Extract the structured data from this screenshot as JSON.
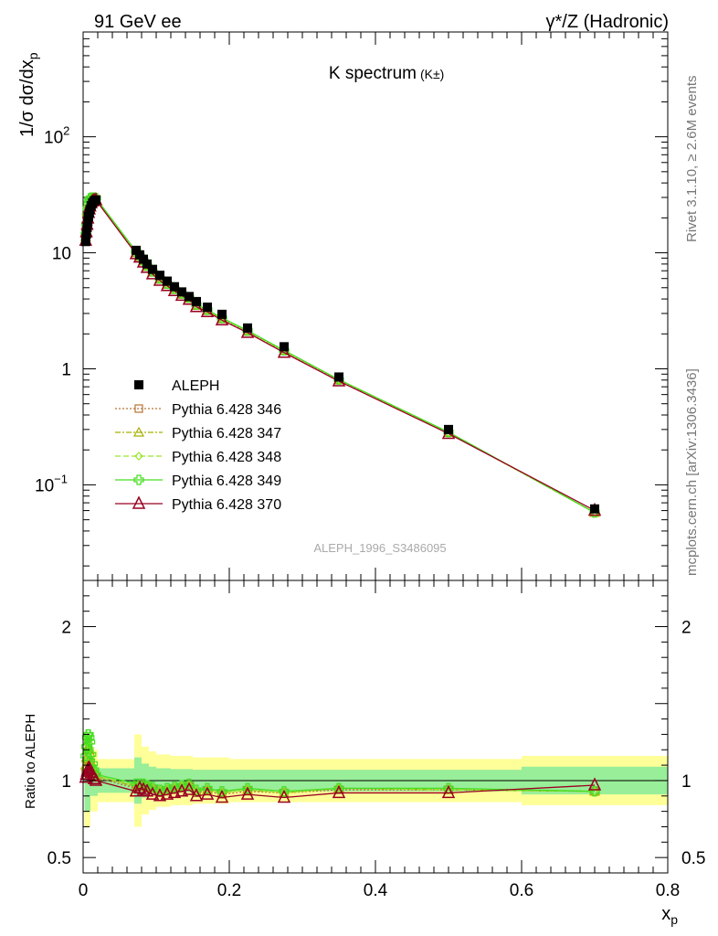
{
  "header": {
    "left": "91 GeV ee",
    "right": "γ*/Z (Hadronic)"
  },
  "side_labels": {
    "rivet": "Rivet 3.1.10, ≥ 2.6M events",
    "mcplots": "mcplots.cern.ch [arXiv:1306.3436]"
  },
  "chart_data": {
    "type": "line",
    "title": "K spectrum",
    "title_sub": "(K±)",
    "analysis_tag": "ALEPH_1996_S3486095",
    "xlabel": "x",
    "xlabel_sub": "p",
    "ylabel_main": "1/σ dσ/dx",
    "ylabel_main_sub": "p",
    "ylabel_ratio": "Ratio to ALEPH",
    "xlim": [
      0,
      0.8
    ],
    "ylim_main": [
      0.015,
      800
    ],
    "ylog_main": true,
    "ylim_ratio": [
      0.4,
      2.3
    ],
    "x_ticks": [
      "0",
      "0.2",
      "0.4",
      "0.6",
      "0.8"
    ],
    "x_tick_values": [
      0,
      0.2,
      0.4,
      0.6,
      0.8
    ],
    "y_ticks_main": [
      {
        "value": 0.1,
        "label": "10",
        "sup": "−1"
      },
      {
        "value": 1,
        "label": "1",
        "sup": ""
      },
      {
        "value": 10,
        "label": "10",
        "sup": ""
      },
      {
        "value": 100,
        "label": "10",
        "sup": "2"
      }
    ],
    "y_ticks_ratio": [
      {
        "value": 0.5,
        "label": "0.5"
      },
      {
        "value": 1,
        "label": "1"
      },
      {
        "value": 2,
        "label": "2"
      }
    ],
    "data": {
      "name": "ALEPH",
      "x": [
        0.0035,
        0.0045,
        0.0055,
        0.0065,
        0.0075,
        0.0085,
        0.0095,
        0.011,
        0.013,
        0.015,
        0.0175,
        0.0725,
        0.0775,
        0.0825,
        0.0875,
        0.095,
        0.105,
        0.115,
        0.125,
        0.135,
        0.145,
        0.155,
        0.17,
        0.19,
        0.225,
        0.275,
        0.35,
        0.5,
        0.7
      ],
      "y": [
        12.5,
        14.5,
        16.5,
        18.5,
        20.5,
        22,
        23.5,
        25.5,
        27,
        28,
        28.5,
        10.5,
        9.6,
        8.8,
        8.0,
        7.2,
        6.4,
        5.7,
        5.1,
        4.6,
        4.2,
        3.8,
        3.4,
        2.95,
        2.25,
        1.55,
        0.85,
        0.3,
        0.062
      ],
      "color": "#000000"
    },
    "ratio_band_x": [
      0.002,
      0.01,
      0.02,
      0.07,
      0.08,
      0.09,
      0.1,
      0.12,
      0.15,
      0.2,
      0.3,
      0.4,
      0.5,
      0.6,
      0.8
    ],
    "ratio_band_stat": [
      0.2,
      0.1,
      0.08,
      0.15,
      0.11,
      0.09,
      0.08,
      0.075,
      0.07,
      0.07,
      0.07,
      0.07,
      0.07,
      0.09,
      0.09
    ],
    "ratio_band_total": [
      0.3,
      0.2,
      0.14,
      0.3,
      0.22,
      0.19,
      0.17,
      0.16,
      0.15,
      0.14,
      0.14,
      0.14,
      0.14,
      0.16,
      0.16
    ],
    "band_colors": {
      "total": "#ffff99",
      "stat": "#99ee99"
    },
    "series": [
      {
        "name": "Pythia 6.428 346",
        "color": "#b87333",
        "marker": "square-open",
        "dash": "2,2",
        "ratio": [
          1.05,
          1.08,
          1.1,
          1.12,
          1.12,
          1.11,
          1.1,
          1.07,
          1.05,
          1.03,
          1.02,
          0.95,
          0.96,
          0.96,
          0.95,
          0.94,
          0.92,
          0.93,
          0.94,
          0.95,
          0.96,
          0.92,
          0.93,
          0.91,
          0.93,
          0.92,
          0.94,
          0.94,
          0.93
        ]
      },
      {
        "name": "Pythia 6.428 347",
        "color": "#a8b000",
        "marker": "triangle-open",
        "dash": "6,2,2,2",
        "ratio": [
          1.1,
          1.15,
          1.2,
          1.22,
          1.22,
          1.2,
          1.18,
          1.12,
          1.08,
          1.05,
          1.03,
          0.96,
          0.97,
          0.97,
          0.96,
          0.95,
          0.93,
          0.94,
          0.95,
          0.96,
          0.97,
          0.93,
          0.94,
          0.92,
          0.94,
          0.92,
          0.95,
          0.94,
          0.93
        ]
      },
      {
        "name": "Pythia 6.428 348",
        "color": "#99e62e",
        "marker": "diamond-open",
        "dash": "6,3",
        "ratio": [
          1.12,
          1.18,
          1.24,
          1.26,
          1.26,
          1.24,
          1.21,
          1.14,
          1.09,
          1.06,
          1.03,
          0.97,
          0.97,
          0.97,
          0.96,
          0.95,
          0.93,
          0.94,
          0.95,
          0.96,
          0.97,
          0.93,
          0.94,
          0.92,
          0.94,
          0.92,
          0.95,
          0.94,
          0.93
        ]
      },
      {
        "name": "Pythia 6.428 349",
        "color": "#44dd22",
        "marker": "cross-open",
        "dash": "",
        "ratio": [
          1.16,
          1.22,
          1.28,
          1.3,
          1.3,
          1.28,
          1.25,
          1.17,
          1.11,
          1.07,
          1.04,
          0.98,
          0.98,
          0.98,
          0.97,
          0.96,
          0.94,
          0.95,
          0.96,
          0.97,
          0.98,
          0.94,
          0.95,
          0.93,
          0.95,
          0.93,
          0.95,
          0.95,
          0.93
        ]
      },
      {
        "name": "Pythia 6.428 370",
        "color": "#990022",
        "marker": "triangle-open-large",
        "dash": "",
        "ratio": [
          1.02,
          1.04,
          1.06,
          1.07,
          1.08,
          1.08,
          1.07,
          1.05,
          1.03,
          1.01,
          1.0,
          0.93,
          0.95,
          0.94,
          0.93,
          0.91,
          0.9,
          0.91,
          0.92,
          0.93,
          0.94,
          0.9,
          0.91,
          0.89,
          0.91,
          0.89,
          0.92,
          0.92,
          0.97
        ]
      }
    ]
  }
}
